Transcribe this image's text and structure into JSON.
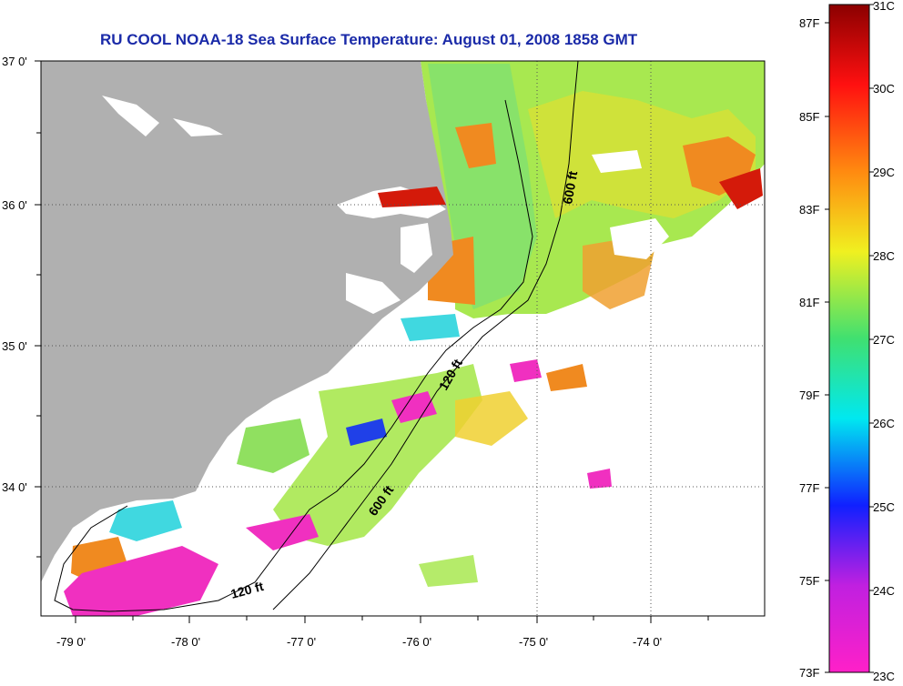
{
  "title": "RU COOL  NOAA-18  Sea Surface Temperature:  August 01, 2008 1858 GMT",
  "map": {
    "lat_labels": [
      "37 0'",
      "36 0'",
      "35 0'",
      "34 0'"
    ],
    "lon_labels": [
      "-79 0'",
      "-78 0'",
      "-77 0'",
      "-76 0'",
      "-75 0'",
      "-74 0'"
    ],
    "contours": [
      "600 ft",
      "120 ft",
      "600 ft",
      "120 ft"
    ]
  },
  "colorbar": {
    "celsius": [
      "31C",
      "30C",
      "29C",
      "28C",
      "27C",
      "26C",
      "25C",
      "24C",
      "23C"
    ],
    "fahrenheit": [
      "87F",
      "85F",
      "83F",
      "81F",
      "79F",
      "77F",
      "75F",
      "73F"
    ]
  },
  "colors": {
    "land": "#b0b0b0",
    "title": "#1a2aa8",
    "warm": "#d41a0a",
    "orange": "#f08a20",
    "yellow": "#e8e025",
    "green": "#a8e850",
    "cyan": "#40d8e0",
    "blue": "#2040e8",
    "magenta": "#f030c0"
  }
}
